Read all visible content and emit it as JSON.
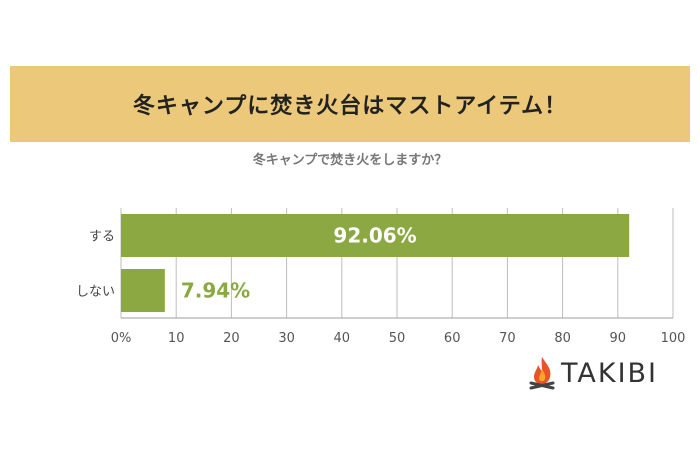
{
  "banner": {
    "title": "冬キャンプに焚き火台はマストアイテム！"
  },
  "brand": {
    "name": "TAKIBI"
  },
  "colors": {
    "bar": "#8ca843",
    "banner": "#ecc97a",
    "value_label_outside": "#8ca843"
  },
  "chart_data": {
    "type": "bar",
    "orientation": "horizontal",
    "title": "冬キャンプで焚き火をしますか？",
    "categories": [
      "する",
      "しない"
    ],
    "values": [
      92.06,
      7.94
    ],
    "value_labels": [
      "92.06%",
      "7.94%"
    ],
    "xlim": [
      0,
      100
    ],
    "xticks": [
      0,
      10,
      20,
      30,
      40,
      50,
      60,
      70,
      80,
      90,
      100
    ],
    "xtick_labels": [
      "0%",
      "10",
      "20",
      "30",
      "40",
      "50",
      "60",
      "70",
      "80",
      "90",
      "100"
    ],
    "grid": true,
    "legend": "none"
  }
}
